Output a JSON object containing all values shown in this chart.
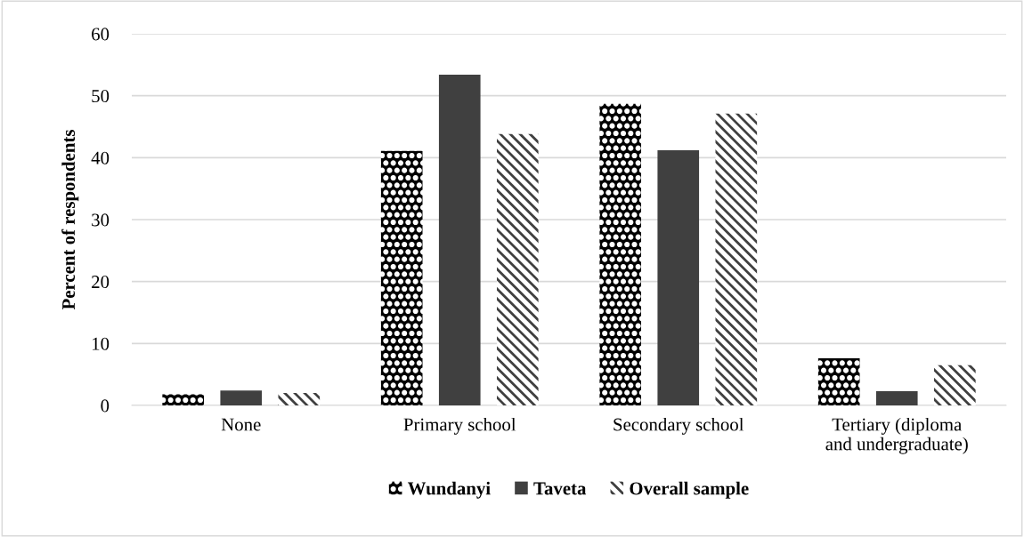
{
  "chart_data": {
    "type": "bar",
    "ylabel": "Percent of respondents",
    "categories": [
      "None",
      "Primary school",
      "Secondary school",
      "Tertiary (diploma\nand undergraduate)"
    ],
    "series": [
      {
        "name": "Wundanyi",
        "color": "#000000",
        "values": [
          1.8,
          41.1,
          48.7,
          7.6
        ]
      },
      {
        "name": "Taveta",
        "color": "#404040",
        "values": [
          2.4,
          53.4,
          41.2,
          2.3
        ]
      },
      {
        "name": "Overall sample",
        "color": "#404040",
        "values": [
          2.0,
          43.8,
          47.1,
          6.5
        ]
      }
    ],
    "ylim": [
      0,
      60
    ],
    "yticks": [
      0,
      10,
      20,
      30,
      40,
      50,
      60
    ],
    "grid": "y",
    "legend": "bottom"
  }
}
